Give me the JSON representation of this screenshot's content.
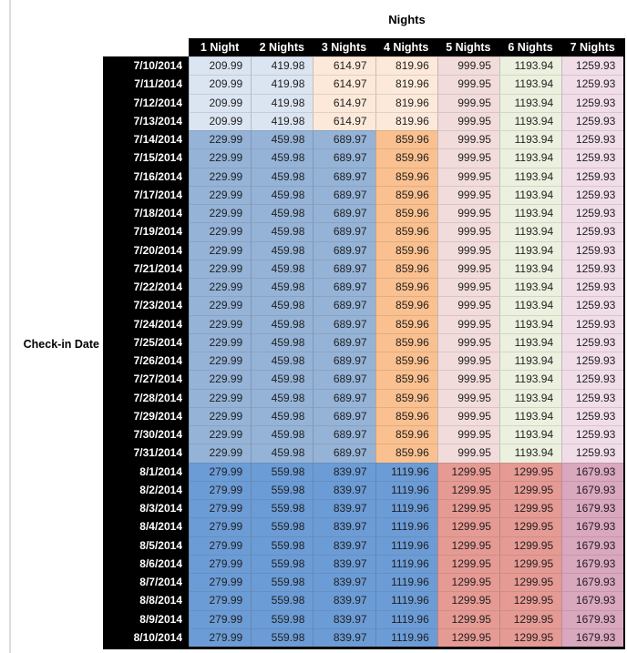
{
  "palette": {
    "blue_light": "#DBE5F1",
    "blue_mid": "#95B3D7",
    "blue_dark": "#6C9CD6",
    "orange_light": "#FDE9D9",
    "orange_mid": "#FAC08F",
    "red_light": "#F2DCDB",
    "red_mid": "#E69A94",
    "green_light": "#EBF1DE",
    "pink_light": "#F0DDE8",
    "pink_mid": "#D9A7BE",
    "header_bg": "#000000",
    "header_text": "#FFFFFF"
  },
  "chart_data": {
    "type": "table",
    "title": "Nights",
    "row_axis_label": "Check-in Date",
    "columns": [
      "1 Night",
      "2 Nights",
      "3 Nights",
      "4 Nights",
      "5 Nights",
      "6 Nights",
      "7 Nights"
    ],
    "tier_colors": {
      "early": [
        "blue_light",
        "blue_light",
        "orange_light",
        "orange_light",
        "red_light",
        "green_light",
        "pink_light"
      ],
      "mid": [
        "blue_mid",
        "blue_mid",
        "blue_mid",
        "orange_mid",
        "red_light",
        "green_light",
        "pink_light"
      ],
      "august": [
        "blue_dark",
        "blue_dark",
        "blue_dark",
        "blue_dark",
        "red_mid",
        "red_mid",
        "pink_mid"
      ]
    },
    "rows": [
      {
        "date": "7/10/2014",
        "tier": "early",
        "values": [
          209.99,
          419.98,
          614.97,
          819.96,
          999.95,
          1193.94,
          1259.93
        ]
      },
      {
        "date": "7/11/2014",
        "tier": "early",
        "values": [
          209.99,
          419.98,
          614.97,
          819.96,
          999.95,
          1193.94,
          1259.93
        ]
      },
      {
        "date": "7/12/2014",
        "tier": "early",
        "values": [
          209.99,
          419.98,
          614.97,
          819.96,
          999.95,
          1193.94,
          1259.93
        ]
      },
      {
        "date": "7/13/2014",
        "tier": "early",
        "values": [
          209.99,
          419.98,
          614.97,
          819.96,
          999.95,
          1193.94,
          1259.93
        ]
      },
      {
        "date": "7/14/2014",
        "tier": "mid",
        "values": [
          229.99,
          459.98,
          689.97,
          859.96,
          999.95,
          1193.94,
          1259.93
        ]
      },
      {
        "date": "7/15/2014",
        "tier": "mid",
        "values": [
          229.99,
          459.98,
          689.97,
          859.96,
          999.95,
          1193.94,
          1259.93
        ]
      },
      {
        "date": "7/16/2014",
        "tier": "mid",
        "values": [
          229.99,
          459.98,
          689.97,
          859.96,
          999.95,
          1193.94,
          1259.93
        ]
      },
      {
        "date": "7/17/2014",
        "tier": "mid",
        "values": [
          229.99,
          459.98,
          689.97,
          859.96,
          999.95,
          1193.94,
          1259.93
        ]
      },
      {
        "date": "7/18/2014",
        "tier": "mid",
        "values": [
          229.99,
          459.98,
          689.97,
          859.96,
          999.95,
          1193.94,
          1259.93
        ]
      },
      {
        "date": "7/19/2014",
        "tier": "mid",
        "values": [
          229.99,
          459.98,
          689.97,
          859.96,
          999.95,
          1193.94,
          1259.93
        ]
      },
      {
        "date": "7/20/2014",
        "tier": "mid",
        "values": [
          229.99,
          459.98,
          689.97,
          859.96,
          999.95,
          1193.94,
          1259.93
        ]
      },
      {
        "date": "7/21/2014",
        "tier": "mid",
        "values": [
          229.99,
          459.98,
          689.97,
          859.96,
          999.95,
          1193.94,
          1259.93
        ]
      },
      {
        "date": "7/22/2014",
        "tier": "mid",
        "values": [
          229.99,
          459.98,
          689.97,
          859.96,
          999.95,
          1193.94,
          1259.93
        ]
      },
      {
        "date": "7/23/2014",
        "tier": "mid",
        "values": [
          229.99,
          459.98,
          689.97,
          859.96,
          999.95,
          1193.94,
          1259.93
        ]
      },
      {
        "date": "7/24/2014",
        "tier": "mid",
        "values": [
          229.99,
          459.98,
          689.97,
          859.96,
          999.95,
          1193.94,
          1259.93
        ]
      },
      {
        "date": "7/25/2014",
        "tier": "mid",
        "values": [
          229.99,
          459.98,
          689.97,
          859.96,
          999.95,
          1193.94,
          1259.93
        ]
      },
      {
        "date": "7/26/2014",
        "tier": "mid",
        "values": [
          229.99,
          459.98,
          689.97,
          859.96,
          999.95,
          1193.94,
          1259.93
        ]
      },
      {
        "date": "7/27/2014",
        "tier": "mid",
        "values": [
          229.99,
          459.98,
          689.97,
          859.96,
          999.95,
          1193.94,
          1259.93
        ]
      },
      {
        "date": "7/28/2014",
        "tier": "mid",
        "values": [
          229.99,
          459.98,
          689.97,
          859.96,
          999.95,
          1193.94,
          1259.93
        ]
      },
      {
        "date": "7/29/2014",
        "tier": "mid",
        "values": [
          229.99,
          459.98,
          689.97,
          859.96,
          999.95,
          1193.94,
          1259.93
        ]
      },
      {
        "date": "7/30/2014",
        "tier": "mid",
        "values": [
          229.99,
          459.98,
          689.97,
          859.96,
          999.95,
          1193.94,
          1259.93
        ]
      },
      {
        "date": "7/31/2014",
        "tier": "mid",
        "values": [
          229.99,
          459.98,
          689.97,
          859.96,
          999.95,
          1193.94,
          1259.93
        ]
      },
      {
        "date": "8/1/2014",
        "tier": "august",
        "values": [
          279.99,
          559.98,
          839.97,
          1119.96,
          1299.95,
          1299.95,
          1679.93
        ]
      },
      {
        "date": "8/2/2014",
        "tier": "august",
        "values": [
          279.99,
          559.98,
          839.97,
          1119.96,
          1299.95,
          1299.95,
          1679.93
        ]
      },
      {
        "date": "8/3/2014",
        "tier": "august",
        "values": [
          279.99,
          559.98,
          839.97,
          1119.96,
          1299.95,
          1299.95,
          1679.93
        ]
      },
      {
        "date": "8/4/2014",
        "tier": "august",
        "values": [
          279.99,
          559.98,
          839.97,
          1119.96,
          1299.95,
          1299.95,
          1679.93
        ]
      },
      {
        "date": "8/5/2014",
        "tier": "august",
        "values": [
          279.99,
          559.98,
          839.97,
          1119.96,
          1299.95,
          1299.95,
          1679.93
        ]
      },
      {
        "date": "8/6/2014",
        "tier": "august",
        "values": [
          279.99,
          559.98,
          839.97,
          1119.96,
          1299.95,
          1299.95,
          1679.93
        ]
      },
      {
        "date": "8/7/2014",
        "tier": "august",
        "values": [
          279.99,
          559.98,
          839.97,
          1119.96,
          1299.95,
          1299.95,
          1679.93
        ]
      },
      {
        "date": "8/8/2014",
        "tier": "august",
        "values": [
          279.99,
          559.98,
          839.97,
          1119.96,
          1299.95,
          1299.95,
          1679.93
        ]
      },
      {
        "date": "8/9/2014",
        "tier": "august",
        "values": [
          279.99,
          559.98,
          839.97,
          1119.96,
          1299.95,
          1299.95,
          1679.93
        ]
      },
      {
        "date": "8/10/2014",
        "tier": "august",
        "values": [
          279.99,
          559.98,
          839.97,
          1119.96,
          1299.95,
          1299.95,
          1679.93
        ]
      }
    ]
  }
}
